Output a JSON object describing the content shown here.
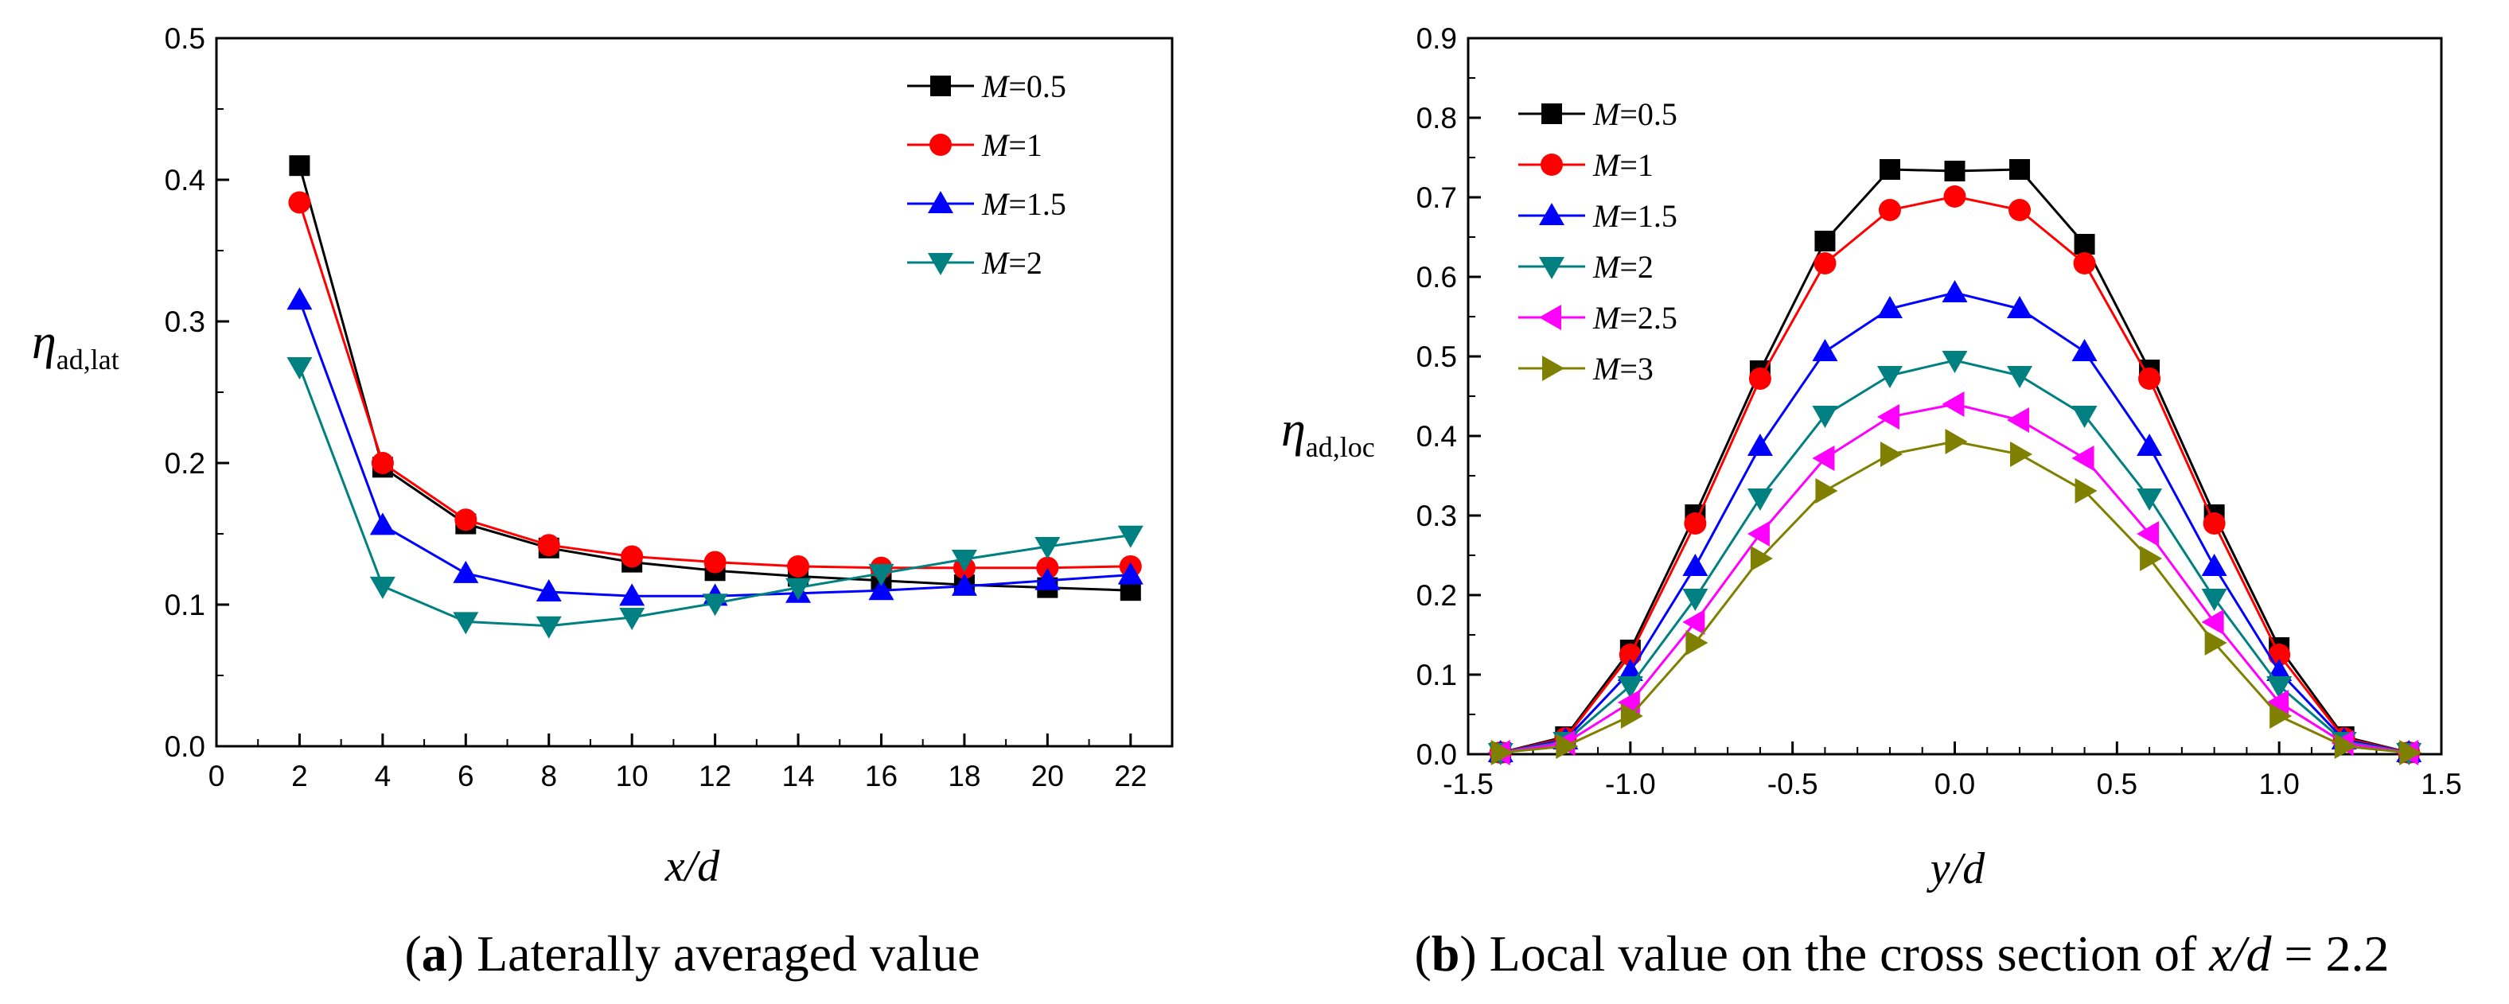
{
  "chart_data": [
    {
      "type": "line",
      "panel": "a",
      "caption_letter": "a",
      "caption_text": "Laterally averaged value",
      "xlabel": "x/d",
      "ylabel_main": "η",
      "ylabel_sub": "ad,lat",
      "xlim": [
        0,
        23
      ],
      "ylim": [
        0,
        0.5
      ],
      "xticks": [
        0,
        2,
        4,
        6,
        8,
        10,
        12,
        14,
        16,
        18,
        20,
        22
      ],
      "xtick_labels": [
        "0",
        "2",
        "4",
        "6",
        "8",
        "10",
        "12",
        "14",
        "16",
        "18",
        "20",
        "22"
      ],
      "yticks": [
        0,
        0.1,
        0.2,
        0.3,
        0.4,
        0.5
      ],
      "ytick_labels": [
        "0.0",
        "0.1",
        "0.2",
        "0.3",
        "0.4",
        "0.5"
      ],
      "legend_position": "top-right",
      "x": [
        2,
        4,
        6,
        8,
        10,
        12,
        14,
        16,
        18,
        20,
        22
      ],
      "series": [
        {
          "name": "M=0.5",
          "label_var": "M",
          "label_val": "=0.5",
          "color": "#000000",
          "marker": "square",
          "values": [
            0.41,
            0.197,
            0.157,
            0.14,
            0.13,
            0.124,
            0.12,
            0.117,
            0.114,
            0.112,
            0.11
          ]
        },
        {
          "name": "M=1",
          "label_var": "M",
          "label_val": "=1",
          "color": "#ff0000",
          "marker": "circle",
          "values": [
            0.384,
            0.2,
            0.16,
            0.142,
            0.134,
            0.13,
            0.127,
            0.126,
            0.126,
            0.126,
            0.127
          ]
        },
        {
          "name": "M=1.5",
          "label_var": "M",
          "label_val": "=1.5",
          "color": "#0000ff",
          "marker": "triangle-up",
          "values": [
            0.315,
            0.156,
            0.122,
            0.109,
            0.106,
            0.106,
            0.108,
            0.11,
            0.113,
            0.117,
            0.121
          ]
        },
        {
          "name": "M=2",
          "label_var": "M",
          "label_val": "=2",
          "color": "#008080",
          "marker": "triangle-down",
          "values": [
            0.268,
            0.113,
            0.088,
            0.085,
            0.091,
            0.101,
            0.112,
            0.122,
            0.132,
            0.141,
            0.149
          ]
        }
      ]
    },
    {
      "type": "line",
      "panel": "b",
      "caption_letter": "b",
      "caption_text_before": "Local value on the cross section of ",
      "caption_var": "x/d",
      "caption_text_after": " = 2.2",
      "xlabel": "y/d",
      "ylabel_main": "η",
      "ylabel_sub": "ad,loc",
      "xlim": [
        -1.5,
        1.5
      ],
      "ylim": [
        0,
        0.9
      ],
      "xticks": [
        -1.5,
        -1.0,
        -0.5,
        0.0,
        0.5,
        1.0,
        1.5
      ],
      "xtick_labels": [
        "-1.5",
        "-1.0",
        "-0.5",
        "0.0",
        "0.5",
        "1.0",
        "1.5"
      ],
      "yticks": [
        0,
        0.1,
        0.2,
        0.3,
        0.4,
        0.5,
        0.6,
        0.7,
        0.8,
        0.9
      ],
      "ytick_labels": [
        "0.0",
        "0.1",
        "0.2",
        "0.3",
        "0.4",
        "0.5",
        "0.6",
        "0.7",
        "0.8",
        "0.9"
      ],
      "legend_position": "top-left",
      "x": [
        -1.4,
        -1.2,
        -1.0,
        -0.8,
        -0.6,
        -0.4,
        -0.2,
        0.0,
        0.2,
        0.4,
        0.6,
        0.8,
        1.0,
        1.2,
        1.4
      ],
      "series": [
        {
          "name": "M=0.5",
          "label_var": "M",
          "label_val": "=0.5",
          "color": "#000000",
          "marker": "square",
          "values": [
            0.002,
            0.022,
            0.131,
            0.301,
            0.482,
            0.645,
            0.735,
            0.733,
            0.735,
            0.641,
            0.483,
            0.301,
            0.134,
            0.022,
            0.002
          ]
        },
        {
          "name": "M=1",
          "label_var": "M",
          "label_val": "=1",
          "color": "#ff0000",
          "marker": "circle",
          "values": [
            0.002,
            0.02,
            0.125,
            0.29,
            0.472,
            0.617,
            0.684,
            0.701,
            0.684,
            0.617,
            0.472,
            0.29,
            0.125,
            0.02,
            0.002
          ]
        },
        {
          "name": "M=1.5",
          "label_var": "M",
          "label_val": "=1.5",
          "color": "#0000ff",
          "marker": "triangle-up",
          "values": [
            0.002,
            0.018,
            0.104,
            0.236,
            0.387,
            0.506,
            0.56,
            0.58,
            0.56,
            0.506,
            0.387,
            0.236,
            0.104,
            0.018,
            0.002
          ]
        },
        {
          "name": "M=2",
          "label_var": "M",
          "label_val": "=2",
          "color": "#008080",
          "marker": "triangle-down",
          "values": [
            0.002,
            0.016,
            0.086,
            0.196,
            0.322,
            0.426,
            0.476,
            0.495,
            0.476,
            0.426,
            0.322,
            0.196,
            0.086,
            0.016,
            0.002
          ]
        },
        {
          "name": "M=2.5",
          "label_var": "M",
          "label_val": "=2.5",
          "color": "#ff00ff",
          "marker": "triangle-left",
          "values": [
            0.002,
            0.014,
            0.065,
            0.166,
            0.277,
            0.372,
            0.424,
            0.44,
            0.42,
            0.372,
            0.277,
            0.166,
            0.065,
            0.014,
            0.002
          ]
        },
        {
          "name": "M=3",
          "label_var": "M",
          "label_val": "=3",
          "color": "#808000",
          "marker": "triangle-right",
          "values": [
            0.002,
            0.01,
            0.048,
            0.14,
            0.246,
            0.331,
            0.377,
            0.393,
            0.377,
            0.331,
            0.246,
            0.14,
            0.048,
            0.01,
            0.002
          ]
        }
      ]
    }
  ]
}
